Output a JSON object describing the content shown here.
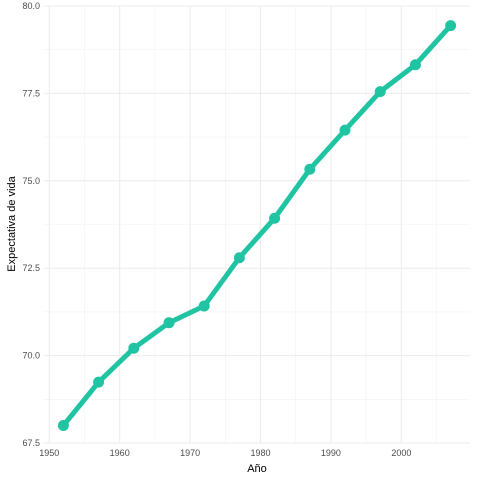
{
  "chart_data": {
    "type": "line",
    "xlabel": "Año",
    "ylabel": "Expectativa de vida",
    "xlim": [
      1949.25,
      2009.75
    ],
    "ylim": [
      67.5,
      80.0
    ],
    "x_ticks": [
      1950,
      1960,
      1970,
      1980,
      1990,
      2000
    ],
    "y_ticks": [
      67.5,
      70.0,
      72.5,
      75.0,
      77.5,
      80.0
    ],
    "y_tick_labels": [
      "67.5",
      "70.0",
      "72.5",
      "75.0",
      "77.5",
      "80.0"
    ],
    "grid": true,
    "legend": "none",
    "series": [
      {
        "color": "#20c4a3",
        "x": [
          1952,
          1957,
          1962,
          1967,
          1972,
          1977,
          1982,
          1987,
          1992,
          1997,
          2002,
          2007
        ],
        "values": [
          68.0,
          69.24,
          70.21,
          70.94,
          71.42,
          72.8,
          73.93,
          75.33,
          76.45,
          77.55,
          78.32,
          79.44
        ]
      }
    ]
  }
}
